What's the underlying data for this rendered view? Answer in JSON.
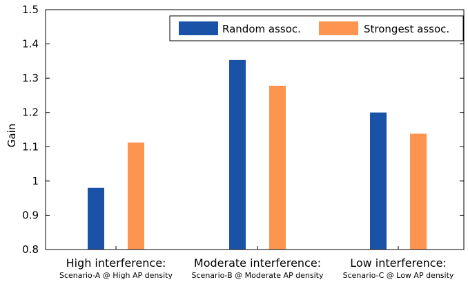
{
  "chart_data": {
    "type": "bar",
    "title": "",
    "xlabel": "",
    "ylabel": "Gain",
    "ylim": [
      0.8,
      1.5
    ],
    "yticks": [
      0.8,
      0.9,
      1,
      1.1,
      1.2,
      1.3,
      1.4,
      1.5
    ],
    "ytick_labels": [
      "0.8",
      "0.9",
      "1",
      "1.1",
      "1.2",
      "1.3",
      "1.4",
      "1.5"
    ],
    "grid": false,
    "legend_position": "top-right",
    "categories": [
      {
        "main": "High interference:",
        "sub": "Scenario-A @ High AP density"
      },
      {
        "main": "Moderate interference:",
        "sub": "Scenario-B @ Moderate AP density"
      },
      {
        "main": "Low interference:",
        "sub": "Scenario-C @ Low AP density"
      }
    ],
    "series": [
      {
        "name": "Random assoc.",
        "color": "#1a52a8",
        "values": [
          0.98,
          1.353,
          1.2
        ]
      },
      {
        "name": "Strongest assoc.",
        "color": "#fd944f",
        "values": [
          1.112,
          1.278,
          1.138
        ]
      }
    ]
  }
}
